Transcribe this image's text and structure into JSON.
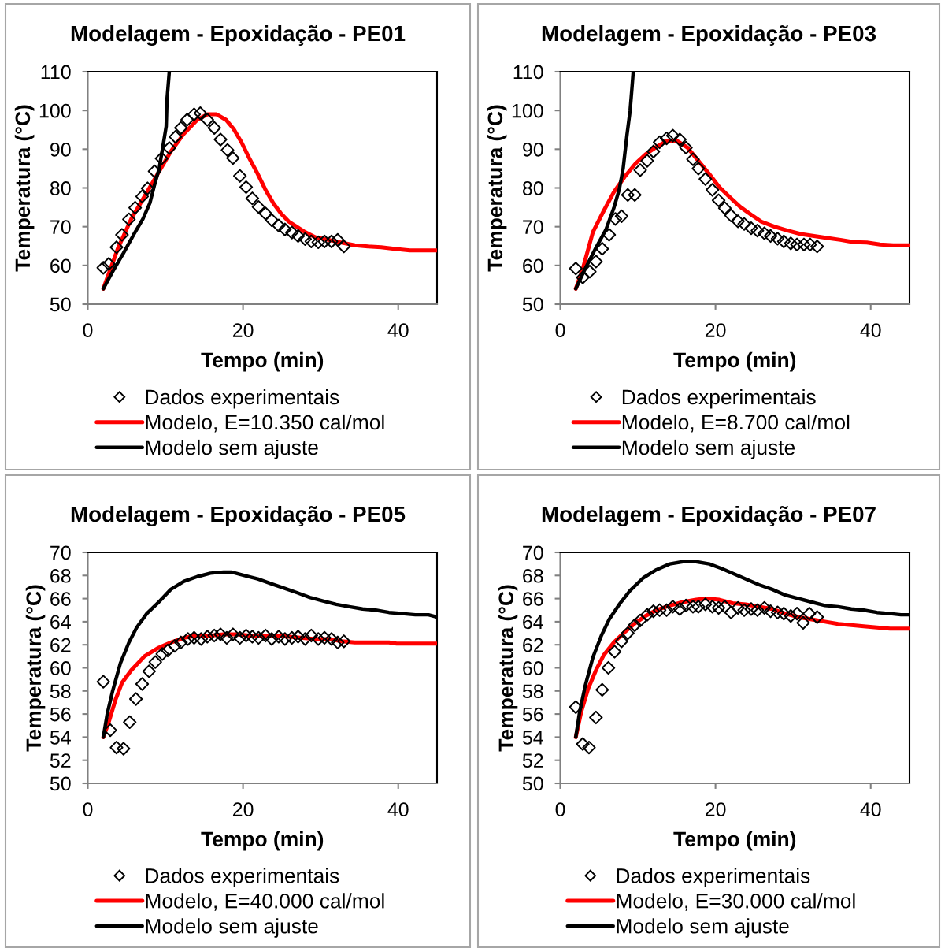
{
  "chart_data": [
    {
      "type": "line",
      "title": "Modelagem - Epoxidação - PE01",
      "xlabel": "Tempo (min)",
      "ylabel": "Temperatura (°C)",
      "xlim": [
        0,
        45
      ],
      "xticks": [
        0,
        20,
        40
      ],
      "ylim": [
        50,
        110
      ],
      "yticks": [
        50,
        60,
        70,
        80,
        90,
        100,
        110
      ],
      "legend": "bottom",
      "series": [
        {
          "name": "Dados experimentais",
          "type": "scatter",
          "marker": "diamond",
          "color": "#000000",
          "x": [
            2.0,
            2.7,
            3.7,
            4.4,
            5.3,
            6.1,
            7.0,
            7.7,
            8.6,
            9.5,
            10.5,
            11.3,
            12.0,
            12.8,
            13.7,
            14.5,
            15.4,
            16.3,
            17.1,
            18.0,
            18.7,
            19.6,
            20.4,
            21.2,
            22.0,
            22.9,
            23.7,
            24.6,
            25.4,
            26.3,
            27.1,
            28.0,
            28.8,
            29.7,
            30.5,
            31.4,
            32.2,
            33.0
          ],
          "values": [
            59.4,
            60.4,
            64.7,
            67.9,
            71.9,
            74.9,
            77.8,
            79.9,
            84.3,
            87.6,
            90.3,
            93.2,
            95.5,
            97.6,
            99.0,
            99.3,
            97.6,
            95.5,
            92.5,
            89.8,
            87.7,
            83.1,
            80.2,
            77.3,
            75.1,
            73.4,
            71.7,
            70.3,
            69.3,
            68.5,
            67.6,
            66.8,
            66.2,
            66.0,
            66.2,
            66.2,
            66.6,
            64.9
          ]
        },
        {
          "name": "Modelo, E=10.350 cal/mol",
          "color": "#ff0000",
          "x": [
            2.0,
            3.9,
            5.6,
            7.3,
            9.0,
            10.7,
            12.3,
            14.1,
            15.4,
            16.6,
            17.8,
            18.8,
            19.8,
            20.8,
            21.9,
            22.9,
            23.9,
            24.9,
            25.9,
            26.9,
            28.0,
            29.3,
            31.0,
            32.7,
            34.4,
            36.1,
            37.8,
            39.5,
            41.5,
            45.0
          ],
          "values": [
            54.0,
            64.5,
            72.0,
            77.8,
            83.6,
            89.4,
            93.8,
            97.6,
            99.0,
            99.0,
            97.6,
            95.2,
            91.8,
            87.7,
            83.6,
            79.5,
            76.1,
            73.4,
            71.3,
            70.0,
            68.6,
            67.3,
            66.6,
            65.9,
            65.2,
            64.9,
            64.7,
            64.3,
            63.9,
            63.9
          ]
        },
        {
          "name": "Modelo sem ajuste",
          "color": "#000000",
          "x": [
            2.0,
            3.2,
            4.6,
            5.9,
            7.1,
            8.0,
            8.6,
            9.2,
            9.6,
            10.1,
            10.2,
            10.5
          ],
          "values": [
            54.0,
            58.4,
            63.2,
            67.9,
            72.0,
            76.1,
            80.8,
            85.0,
            89.8,
            95.9,
            102.7,
            110.0
          ]
        }
      ]
    },
    {
      "type": "line",
      "title": "Modelagem - Epoxidação - PE03",
      "xlabel": "Tempo (min)",
      "ylabel": "Temperatura (°C)",
      "xlim": [
        0,
        45
      ],
      "xticks": [
        0,
        20,
        40
      ],
      "ylim": [
        50,
        110
      ],
      "yticks": [
        50,
        60,
        70,
        80,
        90,
        100,
        110
      ],
      "legend": "bottom",
      "series": [
        {
          "name": "Dados experimentais",
          "type": "scatter",
          "marker": "diamond",
          "color": "#000000",
          "x": [
            2.0,
            2.9,
            3.8,
            4.6,
            5.4,
            6.3,
            7.1,
            7.9,
            8.7,
            9.6,
            10.3,
            11.2,
            12.0,
            12.8,
            13.7,
            14.5,
            15.4,
            16.2,
            17.1,
            17.8,
            18.7,
            19.6,
            20.4,
            21.2,
            22.0,
            22.9,
            23.7,
            24.6,
            25.4,
            26.3,
            27.1,
            28.0,
            28.8,
            29.7,
            30.5,
            31.4,
            32.2,
            33.1
          ],
          "values": [
            59.2,
            56.9,
            58.4,
            61.0,
            64.3,
            67.9,
            72.0,
            72.7,
            78.2,
            78.2,
            84.6,
            87.0,
            89.4,
            91.8,
            92.8,
            93.5,
            92.5,
            90.4,
            87.4,
            85.0,
            82.3,
            79.5,
            76.8,
            74.8,
            72.9,
            71.4,
            70.7,
            69.6,
            69.0,
            68.3,
            67.6,
            66.9,
            66.2,
            65.7,
            65.4,
            65.4,
            65.4,
            64.9
          ]
        },
        {
          "name": "Modelo, E=8.700 cal/mol",
          "color": "#ff0000",
          "x": [
            2.0,
            2.9,
            4.2,
            5.6,
            6.9,
            8.3,
            9.7,
            11.0,
            12.4,
            13.7,
            15.1,
            16.4,
            17.8,
            19.2,
            20.5,
            21.9,
            23.2,
            24.6,
            25.9,
            27.6,
            29.3,
            31.0,
            32.7,
            34.4,
            36.1,
            37.8,
            39.5,
            41.2,
            42.9,
            45.0
          ],
          "values": [
            54.0,
            59.1,
            68.6,
            74.1,
            78.9,
            82.9,
            86.3,
            88.7,
            90.6,
            92.1,
            92.1,
            90.4,
            87.0,
            83.6,
            80.2,
            77.5,
            75.1,
            73.1,
            71.3,
            70.0,
            69.0,
            68.1,
            67.6,
            67.1,
            66.6,
            66.0,
            65.9,
            65.4,
            65.2,
            65.2
          ]
        },
        {
          "name": "Modelo sem ajuste",
          "color": "#000000",
          "x": [
            2.0,
            3.2,
            4.6,
            5.9,
            6.9,
            7.6,
            8.1,
            8.6,
            9.0,
            9.25,
            9.4
          ],
          "values": [
            54.0,
            59.1,
            64.6,
            69.3,
            74.8,
            79.6,
            85.0,
            93.8,
            100.0,
            106.1,
            110.0
          ]
        }
      ]
    },
    {
      "type": "line",
      "title": "Modelagem - Epoxidação - PE05",
      "xlabel": "Tempo (min)",
      "ylabel": "Temperatura (°C)",
      "xlim": [
        0,
        45
      ],
      "xticks": [
        0,
        20,
        40
      ],
      "ylim": [
        50,
        70
      ],
      "yticks": [
        50,
        52,
        54,
        56,
        58,
        60,
        62,
        64,
        66,
        68,
        70
      ],
      "legend": "bottom",
      "series": [
        {
          "name": "Dados experimentais",
          "type": "scatter",
          "marker": "diamond",
          "color": "#000000",
          "x": [
            2.0,
            2.9,
            3.7,
            4.6,
            5.4,
            6.2,
            7.0,
            7.9,
            8.7,
            9.6,
            10.3,
            11.2,
            12.0,
            12.9,
            13.7,
            14.6,
            15.4,
            16.3,
            17.1,
            17.9,
            18.7,
            19.6,
            20.4,
            21.2,
            22.0,
            22.9,
            23.7,
            24.6,
            25.4,
            26.3,
            27.1,
            28.0,
            28.8,
            29.7,
            30.5,
            31.4,
            32.2,
            33.0
          ],
          "values": [
            58.8,
            54.6,
            53.1,
            53.0,
            55.3,
            57.3,
            58.6,
            59.7,
            60.5,
            61.2,
            61.5,
            61.9,
            62.2,
            62.5,
            62.6,
            62.5,
            62.7,
            62.8,
            62.9,
            62.6,
            62.9,
            62.6,
            62.8,
            62.7,
            62.6,
            62.8,
            62.5,
            62.7,
            62.5,
            62.6,
            62.7,
            62.5,
            62.8,
            62.5,
            62.6,
            62.5,
            62.2,
            62.3
          ]
        },
        {
          "name": "Modelo, E=40.000 cal/mol",
          "color": "#ff0000",
          "x": [
            2.0,
            2.7,
            3.6,
            4.4,
            5.6,
            7.3,
            9.0,
            10.7,
            12.4,
            14.1,
            15.8,
            17.5,
            19.2,
            20.8,
            22.5,
            24.2,
            25.9,
            27.7,
            29.3,
            31.1,
            32.7,
            34.4,
            36.1,
            38.8,
            39.8,
            45.0
          ],
          "values": [
            54.0,
            55.3,
            57.3,
            58.7,
            59.8,
            61.0,
            61.7,
            62.2,
            62.6,
            62.8,
            62.8,
            62.9,
            62.9,
            62.8,
            62.8,
            62.8,
            62.7,
            62.6,
            62.5,
            62.5,
            62.3,
            62.2,
            62.2,
            62.2,
            62.1,
            62.1
          ]
        },
        {
          "name": "Modelo sem ajuste",
          "color": "#000000",
          "x": [
            2.0,
            2.5,
            3.2,
            4.2,
            5.3,
            6.3,
            7.6,
            9.0,
            10.7,
            12.4,
            14.1,
            15.8,
            17.5,
            18.5,
            20.2,
            21.9,
            23.6,
            25.3,
            27.0,
            28.6,
            30.3,
            32.0,
            33.7,
            35.4,
            37.1,
            38.8,
            40.5,
            42.2,
            43.9,
            45.0
          ],
          "values": [
            54.0,
            56.0,
            58.0,
            60.4,
            62.2,
            63.5,
            64.7,
            65.6,
            66.8,
            67.5,
            67.9,
            68.2,
            68.3,
            68.3,
            68.0,
            67.7,
            67.3,
            66.9,
            66.5,
            66.1,
            65.8,
            65.5,
            65.3,
            65.1,
            65.0,
            64.8,
            64.7,
            64.6,
            64.6,
            64.4
          ]
        }
      ]
    },
    {
      "type": "line",
      "title": "Modelagem - Epoxidação - PE07",
      "xlabel": "Tempo (min)",
      "ylabel": "Temperatura (°C)",
      "xlim": [
        0,
        45
      ],
      "xticks": [
        0,
        20,
        40
      ],
      "ylim": [
        50,
        70
      ],
      "yticks": [
        50,
        52,
        54,
        56,
        58,
        60,
        62,
        64,
        66,
        68,
        70
      ],
      "legend": "bottom",
      "series": [
        {
          "name": "Dados experimentais",
          "type": "scatter",
          "marker": "diamond",
          "color": "#000000",
          "x": [
            2.0,
            2.9,
            3.7,
            4.6,
            5.4,
            6.2,
            7.0,
            7.9,
            8.7,
            9.6,
            10.3,
            11.2,
            12.0,
            12.8,
            13.7,
            14.5,
            15.4,
            16.2,
            17.1,
            17.8,
            18.7,
            19.6,
            20.4,
            21.2,
            22.0,
            22.9,
            23.7,
            24.6,
            25.4,
            26.3,
            27.1,
            28.0,
            28.8,
            29.7,
            30.5,
            31.3,
            32.1,
            33.1
          ],
          "values": [
            56.6,
            53.4,
            53.1,
            55.7,
            58.1,
            60.0,
            61.4,
            62.3,
            63.0,
            63.7,
            64.1,
            64.6,
            64.9,
            65.0,
            65.0,
            65.3,
            65.1,
            65.4,
            65.3,
            65.3,
            65.5,
            65.3,
            65.2,
            65.3,
            64.8,
            65.2,
            65.0,
            65.1,
            65.0,
            65.2,
            64.9,
            64.8,
            64.7,
            64.5,
            64.7,
            63.9,
            64.7,
            64.4
          ]
        },
        {
          "name": "Modelo, E=30.000 cal/mol",
          "color": "#ff0000",
          "x": [
            2.0,
            2.7,
            3.6,
            4.6,
            5.6,
            6.9,
            8.3,
            9.7,
            11.0,
            12.4,
            14.1,
            15.8,
            17.5,
            18.8,
            20.5,
            22.2,
            23.9,
            25.6,
            27.3,
            29.0,
            30.7,
            32.4,
            34.1,
            35.8,
            37.5,
            39.1,
            40.8,
            42.5,
            45.0
          ],
          "values": [
            54.0,
            56.2,
            58.2,
            59.8,
            61.1,
            62.2,
            63.1,
            63.9,
            64.5,
            65.0,
            65.4,
            65.7,
            65.9,
            66.0,
            65.9,
            65.6,
            65.5,
            65.3,
            65.1,
            64.7,
            64.4,
            64.2,
            64.0,
            63.8,
            63.7,
            63.6,
            63.5,
            63.4,
            63.4
          ]
        },
        {
          "name": "Modelo sem ajuste",
          "color": "#000000",
          "x": [
            2.0,
            2.5,
            3.2,
            4.2,
            5.3,
            6.3,
            7.6,
            9.0,
            10.7,
            12.4,
            14.1,
            15.8,
            17.5,
            19.2,
            20.8,
            22.5,
            23.9,
            25.6,
            27.3,
            29.0,
            30.7,
            32.4,
            34.1,
            35.8,
            37.5,
            39.1,
            40.8,
            42.5,
            43.9,
            45.0
          ],
          "values": [
            54.0,
            56.2,
            58.4,
            60.9,
            62.8,
            64.2,
            65.5,
            66.7,
            67.8,
            68.5,
            69.0,
            69.2,
            69.2,
            69.0,
            68.6,
            68.1,
            67.7,
            67.2,
            66.8,
            66.3,
            66.0,
            65.7,
            65.4,
            65.3,
            65.1,
            65.0,
            64.8,
            64.7,
            64.6,
            64.6
          ]
        }
      ]
    }
  ]
}
